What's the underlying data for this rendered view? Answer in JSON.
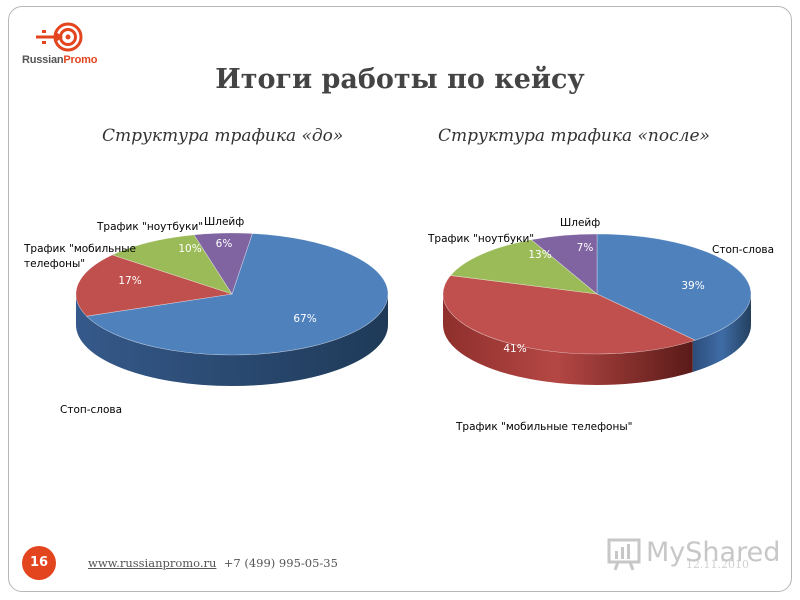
{
  "header": {
    "logo_text_a": "Russian",
    "logo_text_b": "Promo",
    "title": "Итоги работы по кейсу"
  },
  "colors": {
    "blue": "#4f81bd",
    "red": "#c0504d",
    "green": "#9bbb59",
    "purple": "#8064a2",
    "accent": "#e3461f"
  },
  "chart_data": [
    {
      "type": "pie",
      "title": "Структура трафика «до»",
      "slices": [
        {
          "label": "Стоп-слова",
          "value": 67,
          "display": "67%",
          "color": "#4f81bd"
        },
        {
          "label": "Трафик \"мобильные телефоны\"",
          "value": 17,
          "display": "17%",
          "color": "#c0504d"
        },
        {
          "label": "Трафик \"ноутбуки\"",
          "value": 10,
          "display": "10%",
          "color": "#9bbb59"
        },
        {
          "label": "Шлейф",
          "value": 6,
          "display": "6%",
          "color": "#8064a2"
        }
      ]
    },
    {
      "type": "pie",
      "title": "Структура трафика «после»",
      "slices": [
        {
          "label": "Стоп-слова",
          "value": 39,
          "display": "39%",
          "color": "#4f81bd"
        },
        {
          "label": "Трафик \"мобильные телефоны\"",
          "value": 41,
          "display": "41%",
          "color": "#c0504d"
        },
        {
          "label": "Трафик \"ноутбуки\"",
          "value": 13,
          "display": "13%",
          "color": "#9bbb59"
        },
        {
          "label": "Шлейф",
          "value": 7,
          "display": "7%",
          "color": "#8064a2"
        }
      ]
    }
  ],
  "labels": {
    "before": {
      "mobile_line1": "Трафик \"мобильные",
      "mobile_line2": "телефоны\""
    }
  },
  "footer": {
    "page_number": "16",
    "website": "www.russianpromo.ru",
    "phone": "+7 (499) 995-05-35",
    "date": "12.11.2010",
    "watermark": "MyShared"
  }
}
